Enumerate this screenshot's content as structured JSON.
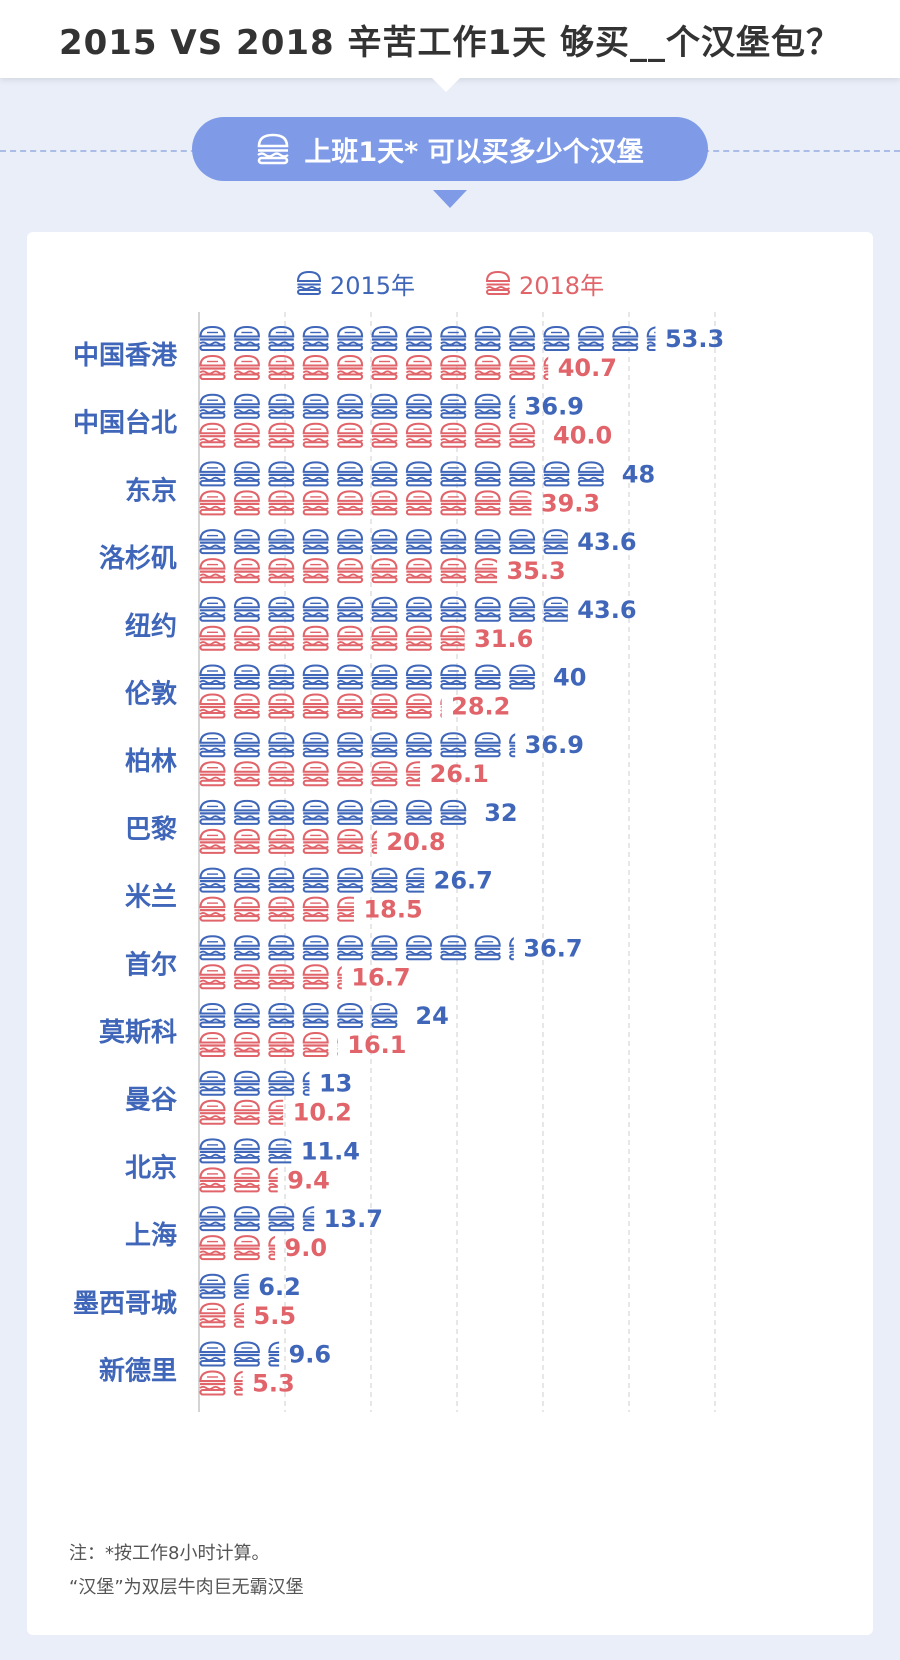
{
  "header": {
    "title": "2015 VS 2018 辛苦工作1天 够买__个汉堡包？"
  },
  "subtitle_pill": {
    "text": "上班1天* 可以买多少个汉堡",
    "icon": "burger-icon"
  },
  "colors": {
    "c2015": "#3f66b8",
    "c2018": "#e0646a",
    "pill": "#7f9be8"
  },
  "chart_data": {
    "type": "bar",
    "unit_icon": "burger-icon",
    "categories": [
      "中国香港",
      "中国台北",
      "东京",
      "洛杉矶",
      "纽约",
      "伦敦",
      "柏林",
      "巴黎",
      "米兰",
      "首尔",
      "莫斯科",
      "曼谷",
      "北京",
      "上海",
      "墨西哥城",
      "新德里"
    ],
    "series": [
      {
        "name": "2015年",
        "values": [
          53.3,
          36.9,
          48,
          43.6,
          43.6,
          40,
          36.9,
          32,
          26.7,
          36.7,
          24,
          13,
          11.4,
          13.7,
          6.2,
          9.6
        ],
        "labels": [
          "53.3",
          "36.9",
          "48",
          "43.6",
          "43.6",
          "40",
          "36.9",
          "32",
          "26.7",
          "36.7",
          "24",
          "13",
          "11.4",
          "13.7",
          "6.2",
          "9.6"
        ]
      },
      {
        "name": "2018年",
        "values": [
          40.7,
          40.0,
          39.3,
          35.3,
          31.6,
          28.2,
          26.1,
          20.8,
          18.5,
          16.7,
          16.1,
          10.2,
          9.4,
          9.0,
          5.5,
          5.3
        ],
        "labels": [
          "40.7",
          "40.0",
          "39.3",
          "35.3",
          "31.6",
          "28.2",
          "26.1",
          "20.8",
          "18.5",
          "16.7",
          "16.1",
          "10.2",
          "9.4",
          "9.0",
          "5.5",
          "5.3"
        ]
      }
    ],
    "burger_unit": 4,
    "grid": true
  },
  "notes": {
    "line1": "注：*按工作8小时计算。",
    "line2": "“汉堡”为双层牛肉巨无霸汉堡"
  }
}
